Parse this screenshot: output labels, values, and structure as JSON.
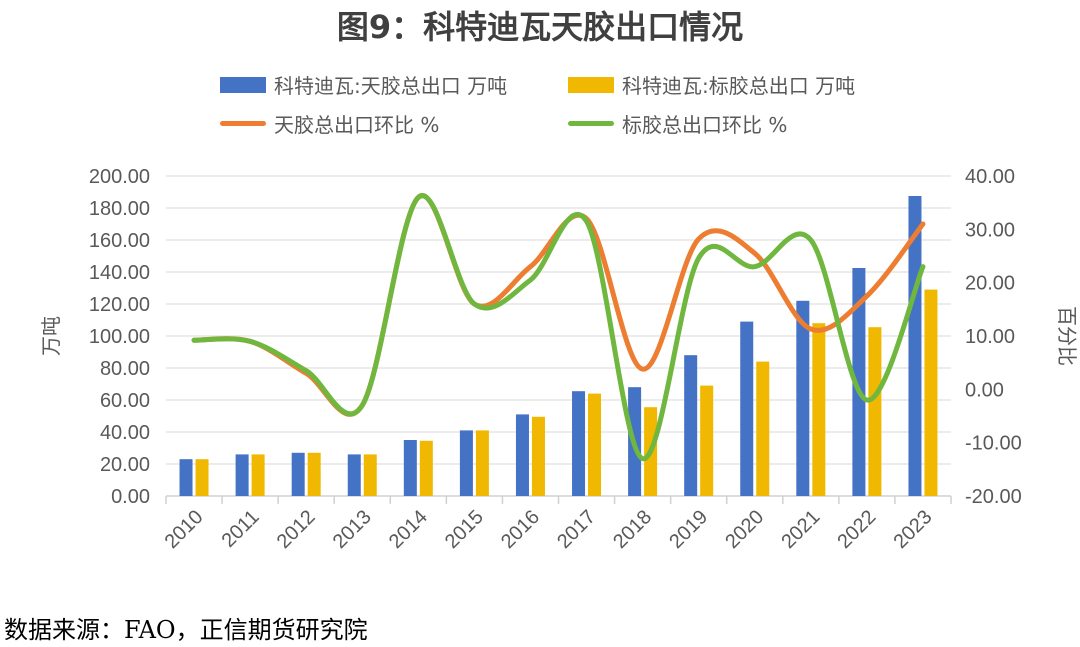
{
  "chart_data": {
    "type": "bar+line",
    "title": "图9：科特迪瓦天胶出口情况",
    "categories": [
      "2010",
      "2011",
      "2012",
      "2013",
      "2014",
      "2015",
      "2016",
      "2017",
      "2018",
      "2019",
      "2020",
      "2021",
      "2022",
      "2023"
    ],
    "ylabel": "万吨",
    "y2label": "百分比",
    "ylim": [
      0,
      200
    ],
    "y2lim": [
      -20,
      40
    ],
    "yticks": [
      "0.00",
      "20.00",
      "40.00",
      "60.00",
      "80.00",
      "100.00",
      "120.00",
      "140.00",
      "160.00",
      "180.00",
      "200.00"
    ],
    "y2ticks": [
      "-20.00",
      "-10.00",
      "0.00",
      "10.00",
      "20.00",
      "30.00",
      "40.00"
    ],
    "grid": true,
    "legend_position": "top",
    "series": [
      {
        "name": "科特迪瓦:天胶总出口 万吨",
        "type": "bar",
        "axis": "left",
        "color": "#4472C4",
        "values": [
          23,
          26,
          27,
          26,
          35,
          41,
          51,
          65.5,
          68,
          88,
          109,
          122,
          142.5,
          187.5
        ]
      },
      {
        "name": "科特迪瓦:标胶总出口 万吨",
        "type": "bar",
        "axis": "left",
        "color": "#F0B800",
        "values": [
          23,
          26,
          27,
          26,
          34.5,
          41,
          49.5,
          64,
          55.5,
          69,
          84,
          108,
          105.5,
          129
        ]
      },
      {
        "name": "天胶总出口环比 %",
        "type": "line",
        "axis": "right",
        "color": "#ED7D31",
        "values": [
          9.2,
          9,
          3,
          -3,
          36,
          16,
          23,
          32,
          3.8,
          28.2,
          25.5,
          11.3,
          17.5,
          31
        ]
      },
      {
        "name": "标胶总出口环比 %",
        "type": "line",
        "axis": "right",
        "color": "#70B73F",
        "values": [
          9.2,
          9,
          3.5,
          -3,
          36,
          16,
          20.5,
          31.5,
          -13,
          24.6,
          23,
          28,
          -2,
          23
        ]
      }
    ]
  },
  "source": "数据来源：FAO，正信期货研究院"
}
